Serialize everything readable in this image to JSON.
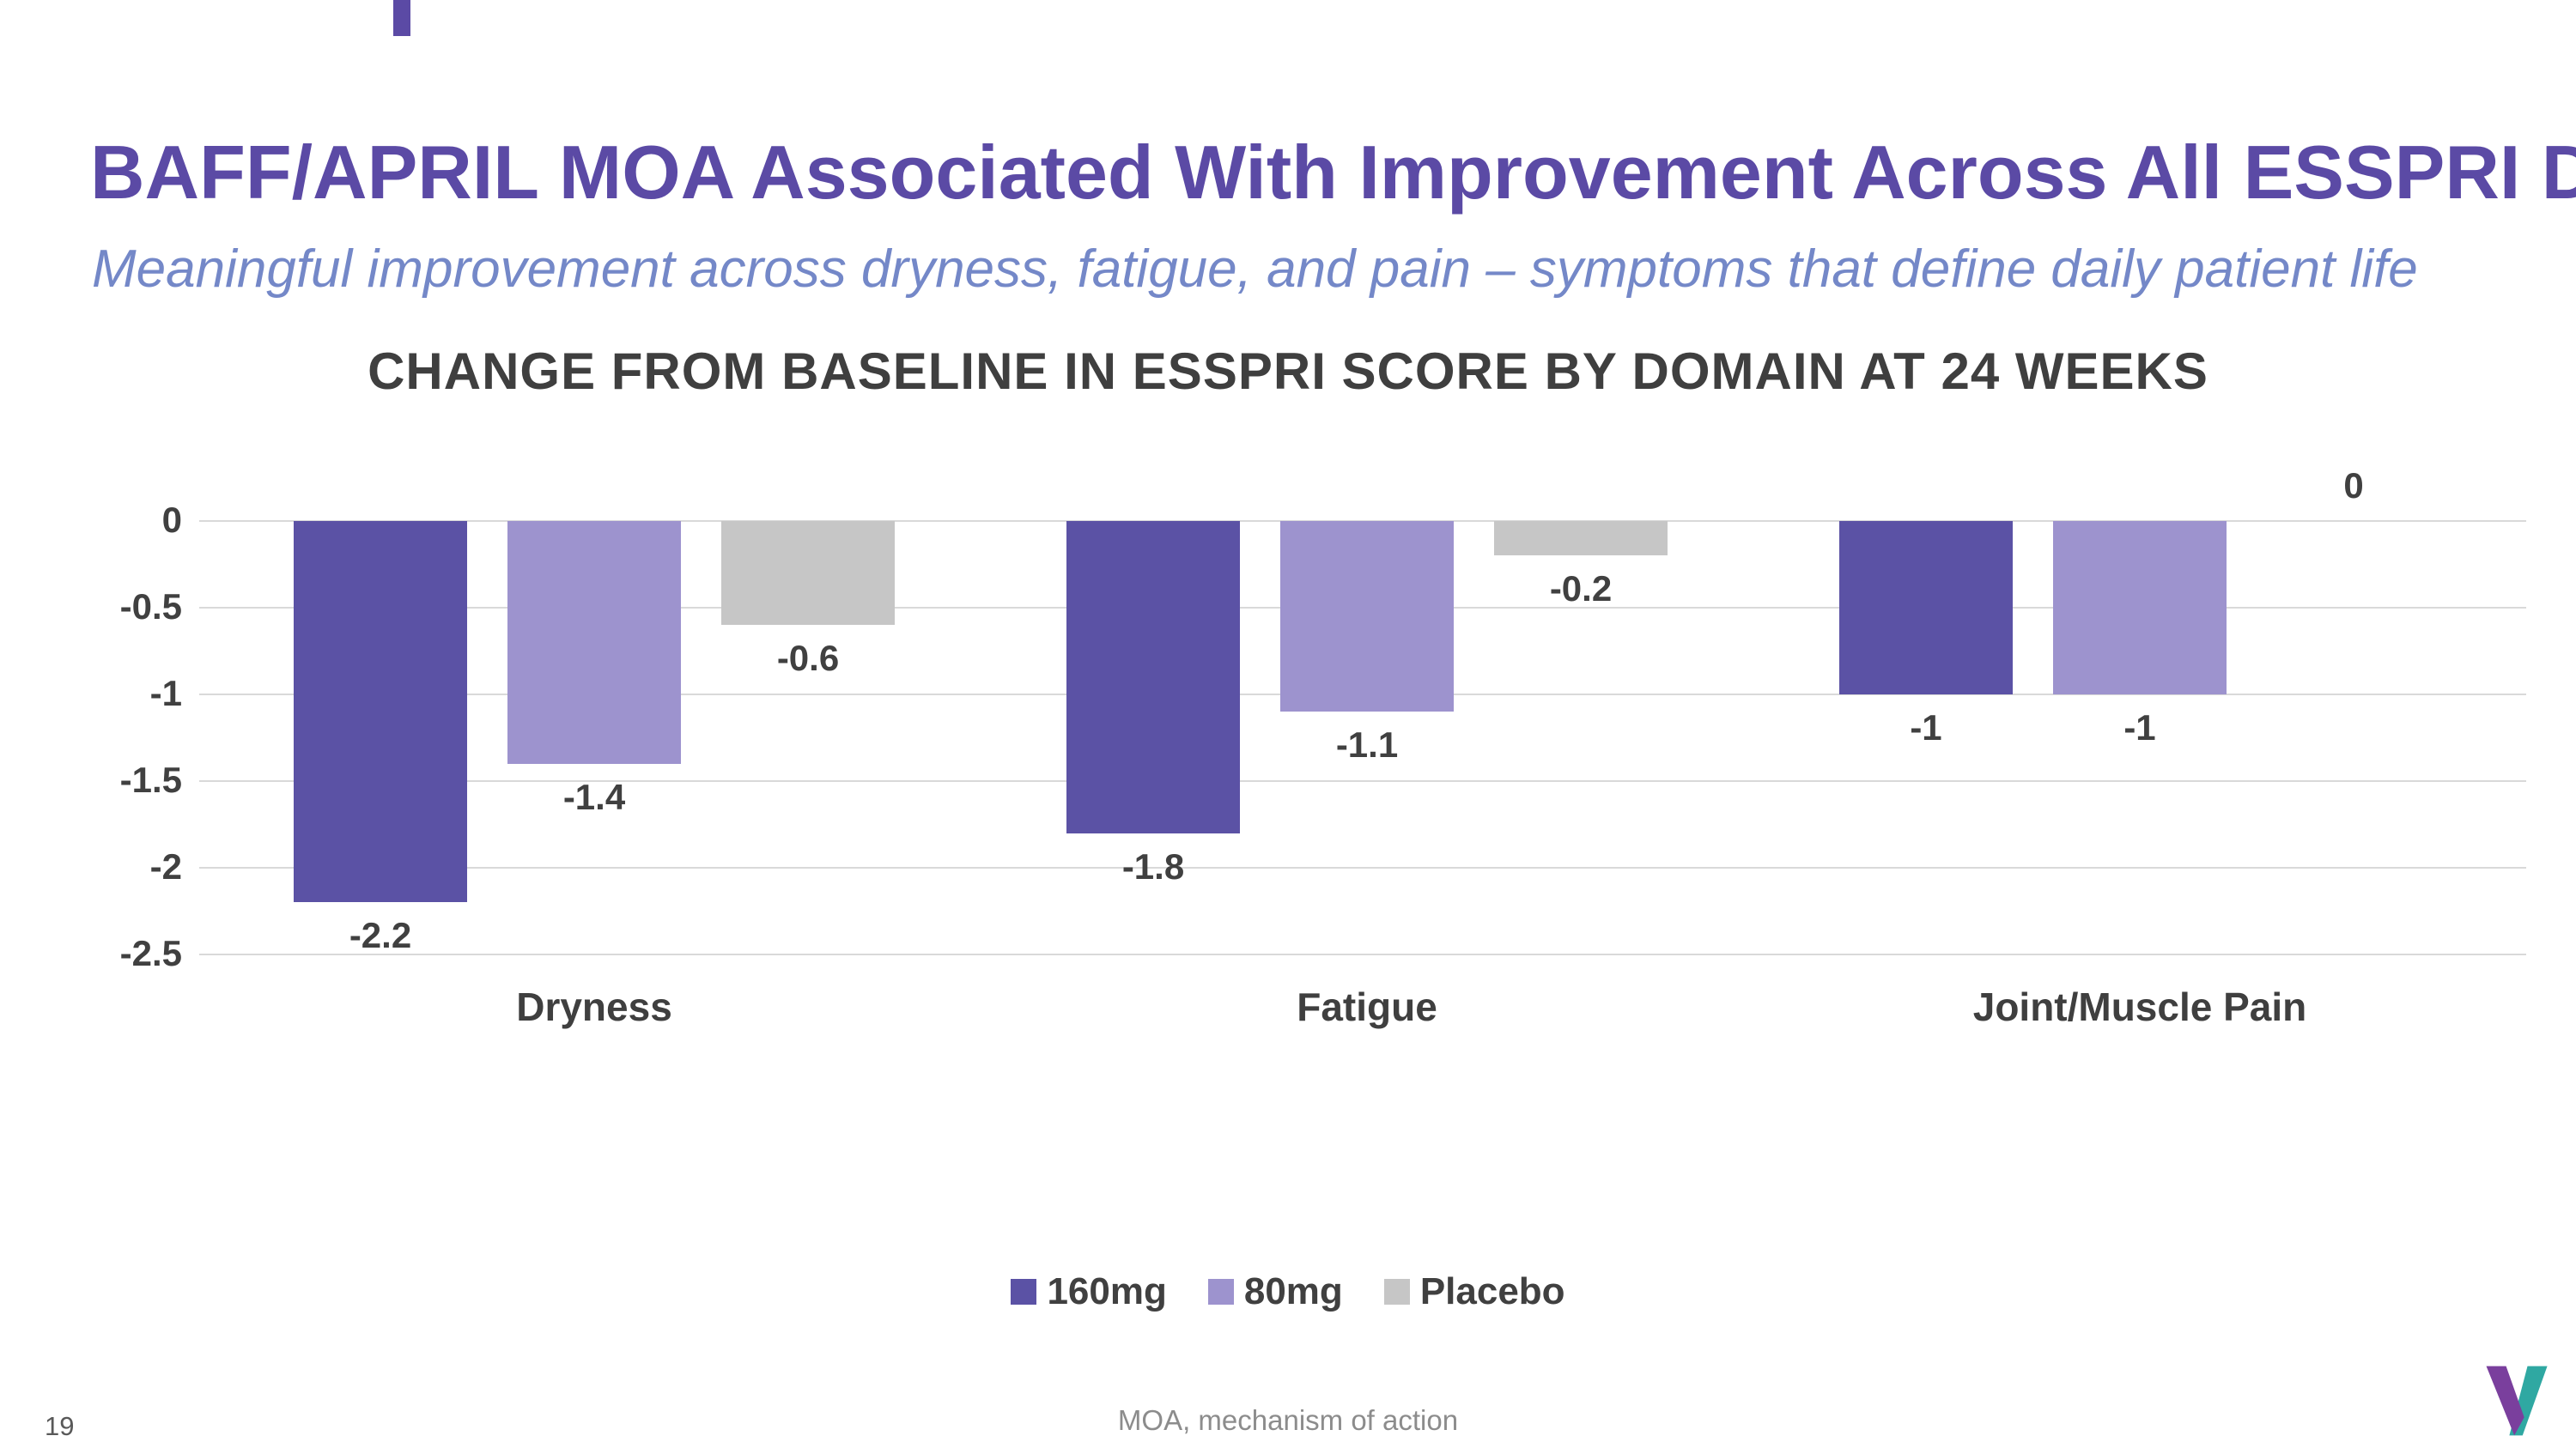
{
  "slide": {
    "title": "BAFF/APRIL MOA Associated With Improvement Across All ESSPRI Domains",
    "subtitle": "Meaningful improvement across dryness, fatigue, and pain – symptoms that define daily patient life",
    "page_number": "19",
    "footnote": "MOA, mechanism of action"
  },
  "chart_data": {
    "type": "bar",
    "title": "CHANGE FROM BASELINE IN ESSPRI SCORE BY DOMAIN AT 24 WEEKS",
    "categories": [
      "Dryness",
      "Fatigue",
      "Joint/Muscle Pain"
    ],
    "series": [
      {
        "name": "160mg",
        "color": "#5b52a5",
        "values": [
          -2.2,
          -1.8,
          -1
        ]
      },
      {
        "name": "80mg",
        "color": "#9d93ce",
        "values": [
          -1.4,
          -1.1,
          -1
        ]
      },
      {
        "name": "Placebo",
        "color": "#c6c6c6",
        "values": [
          -0.6,
          -0.2,
          0
        ]
      }
    ],
    "value_labels": [
      [
        "-2.2",
        "-1.8",
        "-1"
      ],
      [
        "-1.4",
        "-1.1",
        "-1"
      ],
      [
        "-0.6",
        "-0.2",
        "0"
      ]
    ],
    "ylim": [
      0,
      -2.5
    ],
    "yticks": [
      0,
      -0.5,
      -1,
      -1.5,
      -2,
      -2.5
    ],
    "ytick_labels": [
      "0",
      "-0.5",
      "-1",
      "-1.5",
      "-2",
      "-2.5"
    ],
    "grid": true,
    "legend_position": "bottom",
    "bar_orientation": "vertical-negative"
  },
  "colors": {
    "title": "#5b4aa5",
    "subtitle": "#7488c8",
    "chart_text": "#404040",
    "gridline": "#d9d9d9",
    "accent_purple": "#5b4aa5",
    "logo_purple": "#7a3f9d",
    "logo_teal": "#2fa8a2"
  }
}
